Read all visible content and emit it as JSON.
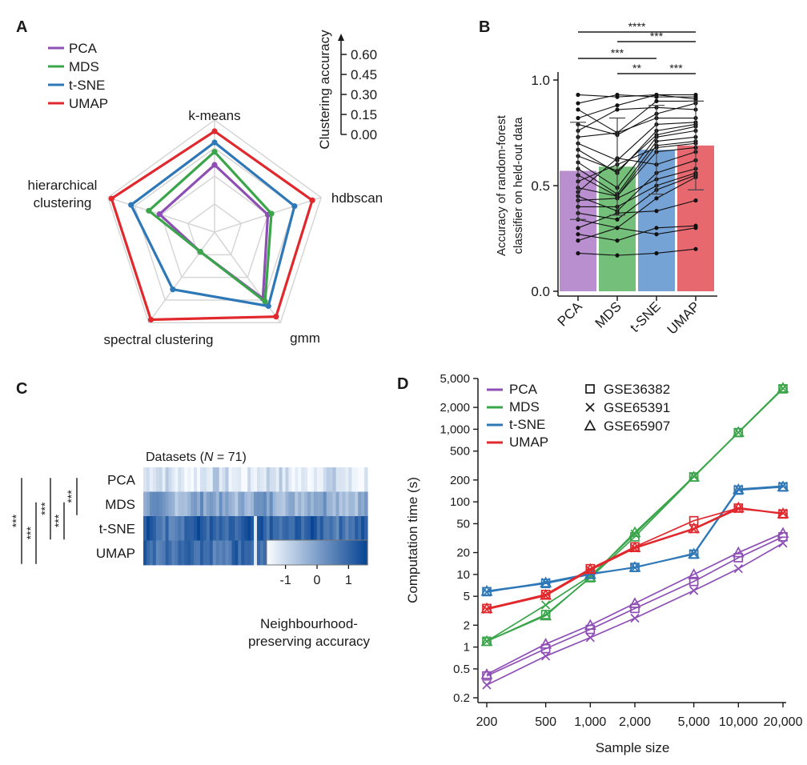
{
  "colors": {
    "PCA": "#8e4fb5",
    "MDS": "#3aa54a",
    "t-SNE": "#2f78b7",
    "UMAP": "#e0282d",
    "PCA_bar": "#b98fcf",
    "MDS_bar": "#74c07a",
    "t-SNE_bar": "#76a3d6",
    "UMAP_bar": "#e86870"
  },
  "chart_data": [
    {
      "panel": "A",
      "type": "radar",
      "axes": [
        "k-means",
        "hdbscan",
        "gmm",
        "spectral clustering",
        "hierarchical\nclustering"
      ],
      "axis_label_lines": [
        [
          "k-means"
        ],
        [
          "hdbscan"
        ],
        [
          "gmm"
        ],
        [
          "spectral clustering"
        ],
        [
          "hierarchical",
          "clustering"
        ]
      ],
      "scale_title": "Clustering accuracy",
      "scale_ticks": [
        "0.60",
        "0.45",
        "0.30",
        "0.15",
        "0.00"
      ],
      "range": [
        0,
        0.6
      ],
      "legend": [
        "PCA",
        "MDS",
        "t-SNE",
        "UMAP"
      ],
      "series": [
        {
          "name": "PCA",
          "values": [
            0.36,
            0.3,
            0.44,
            0.13,
            0.31
          ]
        },
        {
          "name": "MDS",
          "values": [
            0.43,
            0.32,
            0.46,
            0.13,
            0.37
          ]
        },
        {
          "name": "t-SNE",
          "values": [
            0.48,
            0.45,
            0.49,
            0.38,
            0.47
          ]
        },
        {
          "name": "UMAP",
          "values": [
            0.54,
            0.55,
            0.56,
            0.58,
            0.58
          ]
        }
      ]
    },
    {
      "panel": "B",
      "type": "bar",
      "categories": [
        "PCA",
        "MDS",
        "t-SNE",
        "UMAP"
      ],
      "values": [
        0.57,
        0.59,
        0.67,
        0.69
      ],
      "errors": [
        0.23,
        0.23,
        0.21,
        0.21
      ],
      "ylabel_lines": [
        "Accuracy of random-forest",
        "classifier on held-out data"
      ],
      "yticks": [
        "0.0",
        "0.5",
        "1.0"
      ],
      "ylim": [
        0,
        1.05
      ],
      "lines": [
        [
          0.93,
          0.92,
          0.93,
          0.93
        ],
        [
          0.89,
          0.93,
          0.92,
          0.92
        ],
        [
          0.86,
          0.75,
          0.9,
          0.9
        ],
        [
          0.82,
          0.88,
          0.93,
          0.91
        ],
        [
          0.79,
          0.74,
          0.84,
          0.89
        ],
        [
          0.76,
          0.86,
          0.87,
          0.86
        ],
        [
          0.73,
          0.75,
          0.82,
          0.82
        ],
        [
          0.7,
          0.62,
          0.79,
          0.8
        ],
        [
          0.67,
          0.56,
          0.76,
          0.79
        ],
        [
          0.64,
          0.57,
          0.74,
          0.78
        ],
        [
          0.61,
          0.49,
          0.73,
          0.76
        ],
        [
          0.58,
          0.46,
          0.71,
          0.73
        ],
        [
          0.55,
          0.45,
          0.69,
          0.71
        ],
        [
          0.52,
          0.6,
          0.68,
          0.7
        ],
        [
          0.49,
          0.45,
          0.66,
          0.68
        ],
        [
          0.47,
          0.63,
          0.6,
          0.66
        ],
        [
          0.45,
          0.38,
          0.56,
          0.62
        ],
        [
          0.43,
          0.44,
          0.53,
          0.58
        ],
        [
          0.4,
          0.4,
          0.5,
          0.56
        ],
        [
          0.37,
          0.34,
          0.48,
          0.55
        ],
        [
          0.34,
          0.3,
          0.44,
          0.54
        ],
        [
          0.3,
          0.37,
          0.38,
          0.43
        ],
        [
          0.27,
          0.24,
          0.3,
          0.31
        ],
        [
          0.24,
          0.3,
          0.27,
          0.3
        ],
        [
          0.18,
          0.17,
          0.18,
          0.2
        ]
      ],
      "significance": [
        {
          "from": "PCA",
          "to": "UMAP",
          "label": "****"
        },
        {
          "from": "MDS",
          "to": "UMAP",
          "label": "***"
        },
        {
          "from": "PCA",
          "to": "t-SNE",
          "label": "***"
        },
        {
          "from": "MDS",
          "to": "t-SNE",
          "label": "**"
        },
        {
          "from": "t-SNE",
          "to": "UMAP",
          "label": "***"
        }
      ]
    },
    {
      "panel": "C",
      "type": "heatmap",
      "title_prefix": "Datasets (",
      "title_var": "N",
      "title_suffix": " = 71)",
      "rows": [
        "PCA",
        "MDS",
        "t-SNE",
        "UMAP"
      ],
      "n_columns": 71,
      "row_means": [
        -1.2,
        -0.15,
        1.0,
        0.95
      ],
      "colorbar_ticks": [
        "-1",
        "0",
        "1"
      ],
      "colorbar_range": [
        -1.6,
        1.6
      ],
      "colorbar_label_lines": [
        "Neighbourhood-",
        "preserving accuracy"
      ],
      "significance": [
        {
          "from": "PCA",
          "to": "MDS",
          "label": "***"
        },
        {
          "from": "MDS",
          "to": "t-SNE",
          "label": "***"
        },
        {
          "from": "PCA",
          "to": "t-SNE",
          "label": "***"
        },
        {
          "from": "MDS",
          "to": "UMAP",
          "label": "***"
        },
        {
          "from": "PCA",
          "to": "UMAP",
          "label": "***"
        }
      ]
    },
    {
      "panel": "D",
      "type": "line",
      "xscale": "log",
      "yscale": "log",
      "x": [
        200,
        500,
        1000,
        2000,
        5000,
        10000,
        20000
      ],
      "xtick_labels": [
        "200",
        "500",
        "1,000",
        "2,000",
        "5,000",
        "10,000",
        "20,000"
      ],
      "ytick_values": [
        0.2,
        0.5,
        1,
        2,
        5,
        10,
        20,
        50,
        100,
        200,
        500,
        1000,
        2000,
        5000
      ],
      "ytick_labels": [
        "0.2",
        "0.5",
        "1",
        "2",
        "5",
        "10",
        "20",
        "50",
        "100",
        "200",
        "500",
        "1,000",
        "2,000",
        "5,000"
      ],
      "ylim": [
        0.2,
        5000
      ],
      "xlabel": "Sample size",
      "ylabel": "Computation time (s)",
      "legend_methods": [
        "PCA",
        "MDS",
        "t-SNE",
        "UMAP"
      ],
      "legend_datasets": [
        {
          "name": "GSE36382",
          "marker": "square"
        },
        {
          "name": "GSE65391",
          "marker": "cross"
        },
        {
          "name": "GSE65907",
          "marker": "triangle"
        }
      ],
      "series": [
        {
          "method": "PCA",
          "dataset": "GSE36382",
          "values": [
            0.4,
            0.95,
            1.75,
            3.4,
            8,
            17,
            33
          ]
        },
        {
          "method": "PCA",
          "dataset": "GSE65391",
          "values": [
            0.3,
            0.75,
            1.35,
            2.5,
            6,
            12,
            27
          ]
        },
        {
          "method": "PCA",
          "dataset": "GSE65907",
          "values": [
            0.42,
            1.1,
            2,
            4,
            10,
            20,
            37
          ]
        },
        {
          "method": "MDS",
          "dataset": "GSE36382",
          "values": [
            1.2,
            2.8,
            9,
            33,
            220,
            900,
            3600
          ]
        },
        {
          "method": "MDS",
          "dataset": "GSE65391",
          "values": [
            1.2,
            3.8,
            9.5,
            36,
            225,
            900,
            3650
          ]
        },
        {
          "method": "MDS",
          "dataset": "GSE65907",
          "values": [
            1.2,
            2.7,
            9.2,
            38,
            220,
            910,
            3700
          ]
        },
        {
          "method": "t-SNE",
          "dataset": "GSE36382",
          "values": [
            5.8,
            7.5,
            10,
            12.5,
            19,
            145,
            160
          ]
        },
        {
          "method": "t-SNE",
          "dataset": "GSE65391",
          "values": [
            5.7,
            7.8,
            10.3,
            12.4,
            19.5,
            150,
            165
          ]
        },
        {
          "method": "t-SNE",
          "dataset": "GSE65907",
          "values": [
            5.9,
            7.7,
            10.1,
            12.6,
            19.2,
            148,
            162
          ]
        },
        {
          "method": "UMAP",
          "dataset": "GSE36382",
          "values": [
            3.4,
            5.3,
            12,
            24,
            55,
            82,
            68
          ]
        },
        {
          "method": "UMAP",
          "dataset": "GSE65391",
          "values": [
            3.3,
            5.1,
            11.5,
            23,
            42,
            80,
            70
          ]
        },
        {
          "method": "UMAP",
          "dataset": "GSE65907",
          "values": [
            3.4,
            5.2,
            11.8,
            23.5,
            43,
            83,
            69
          ]
        }
      ]
    }
  ],
  "panels": {
    "A": "A",
    "B": "B",
    "C": "C",
    "D": "D"
  }
}
